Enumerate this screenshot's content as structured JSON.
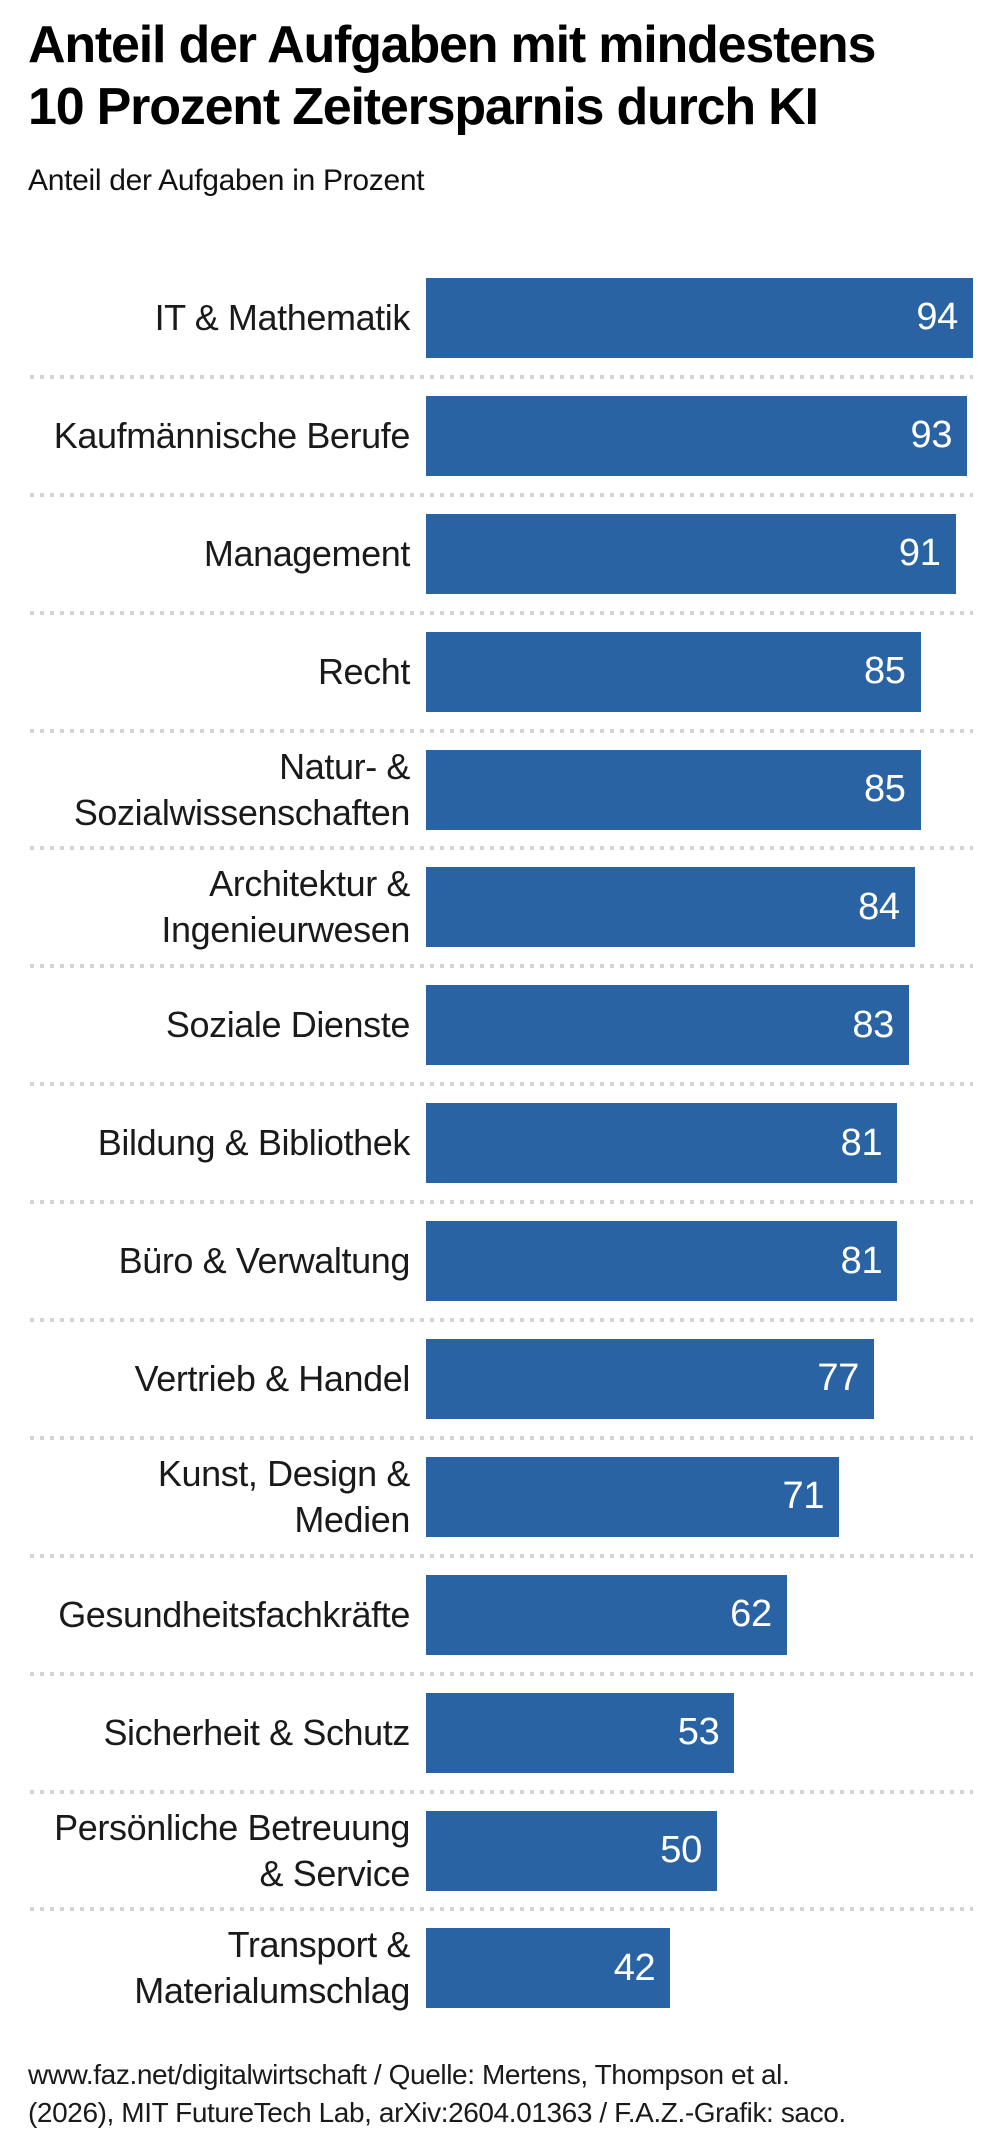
{
  "header": {
    "title_line1": "Anteil der Aufgaben mit mindestens",
    "title_line2": "10 Prozent Zeitersparnis durch KI",
    "subtitle": "Anteil der Aufgaben in Prozent"
  },
  "chart_data": {
    "type": "bar",
    "orientation": "horizontal",
    "title": "Anteil der Aufgaben mit mindestens 10 Prozent Zeitersparnis durch KI",
    "xlabel": "Anteil der Aufgaben in Prozent",
    "xlim": [
      0,
      100
    ],
    "grid": false,
    "legend": false,
    "value_labels": "inside-end",
    "bar_color": "#2a63a4",
    "value_label_color": "#ffffff",
    "separator_color": "#d4d4d4",
    "categories": [
      "IT & Mathematik",
      "Kaufmännische Berufe",
      "Management",
      "Recht",
      "Natur- &\nSozialwissenschaften",
      "Architektur &\nIngenieurwesen",
      "Soziale Dienste",
      "Bildung & Bibliothek",
      "Büro & Verwaltung",
      "Vertrieb & Handel",
      "Kunst, Design &\nMedien",
      "Gesundheitsfachkräfte",
      "Sicherheit & Schutz",
      "Persönliche Betreuung\n& Service",
      "Transport &\nMaterialumschlag"
    ],
    "values": [
      94,
      93,
      91,
      85,
      85,
      84,
      83,
      81,
      81,
      77,
      71,
      62,
      53,
      50,
      42
    ]
  },
  "footer": {
    "line1": "www.faz.net/digitalwirtschaft / Quelle: Mertens, Thompson et al.",
    "line2": "(2026), MIT FutureTech Lab, arXiv:2604.01363 / F.A.Z.-Grafik: saco."
  }
}
